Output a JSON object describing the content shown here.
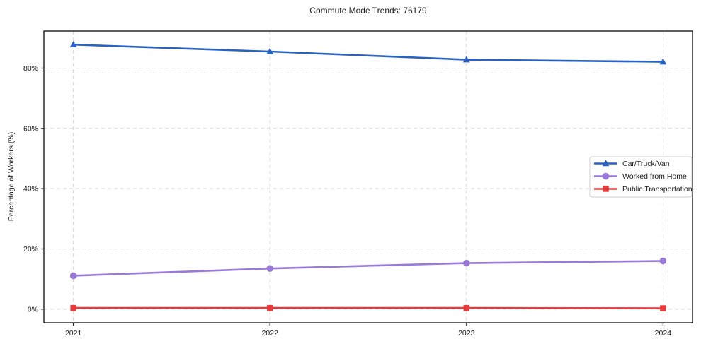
{
  "title": "Commute Mode Trends: 76179",
  "chart_data": {
    "type": "line",
    "title": "Commute Mode Trends: 76179",
    "xlabel": "",
    "ylabel": "Percentage of Workers (%)",
    "x": [
      2021,
      2022,
      2023,
      2024
    ],
    "x_tick_labels": [
      "2021",
      "2022",
      "2023",
      "2024"
    ],
    "y_ticks": [
      0,
      20,
      40,
      60,
      80
    ],
    "y_tick_labels": [
      "0%",
      "20%",
      "40%",
      "60%",
      "80%"
    ],
    "xlim": [
      2020.85,
      2024.15
    ],
    "ylim": [
      -4.5,
      92.3
    ],
    "grid": true,
    "grid_style": "dashed",
    "legend_position": "right-middle",
    "series": [
      {
        "name": "Car/Truck/Van",
        "color": "#2a62c2",
        "marker": "triangle",
        "values": [
          87.8,
          85.5,
          82.8,
          82.1
        ]
      },
      {
        "name": "Worked from Home",
        "color": "#9a79d8",
        "marker": "circle",
        "values": [
          11.1,
          13.5,
          15.3,
          16.0
        ]
      },
      {
        "name": "Public Transportation",
        "color": "#e43c3c",
        "marker": "square",
        "values": [
          0.4,
          0.4,
          0.4,
          0.3
        ]
      }
    ],
    "colors": {
      "plot_border": "#1a1a1a",
      "gridline": "#d4d4d4",
      "legend_border": "#cccccc",
      "background": "#ffffff"
    }
  }
}
